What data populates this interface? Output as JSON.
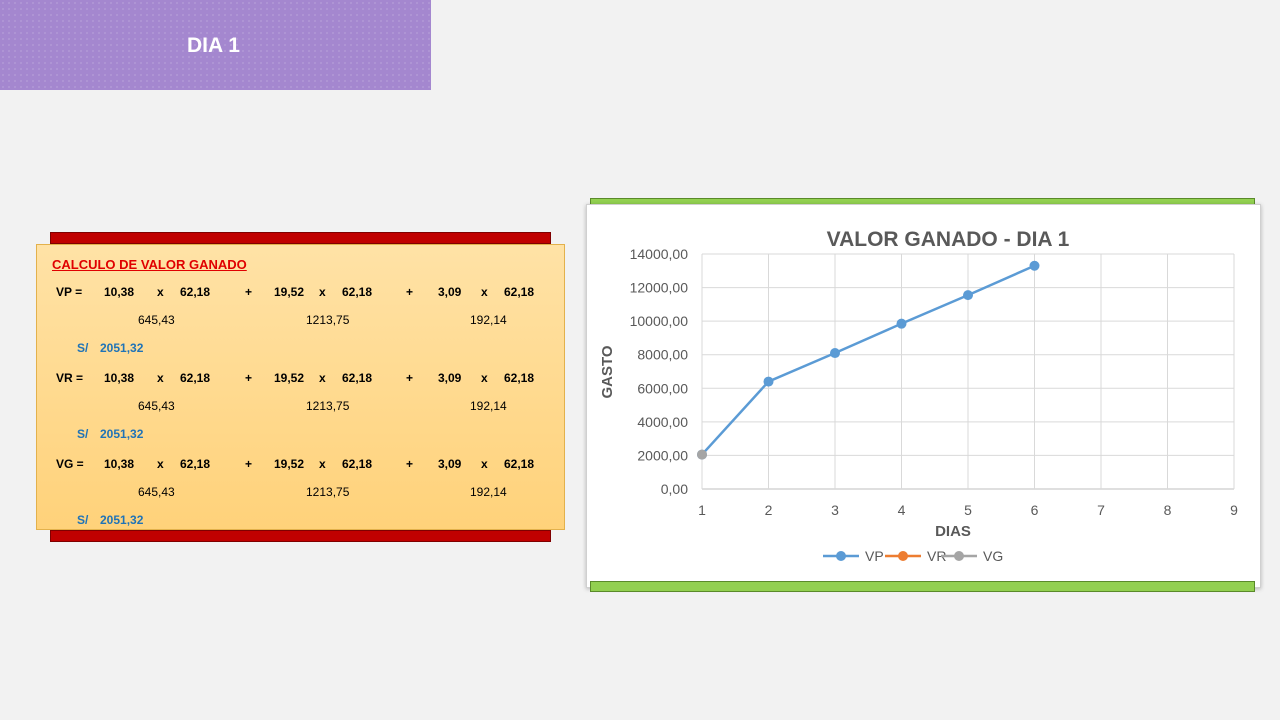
{
  "header": {
    "title": "DIA 1"
  },
  "calc": {
    "title": "CALCULO DE VALOR GANADO",
    "rows": [
      {
        "label": "VP =",
        "a": "10,38",
        "x1": "x",
        "b": "62,18",
        "plus1": "+",
        "c": "19,52",
        "x2": "x",
        "d": "62,18",
        "plus2": "+",
        "e": "3,09",
        "x3": "x",
        "f": "62,18",
        "r1": "645,43",
        "r2": "1213,75",
        "r3": "192,14",
        "cur": "S/",
        "total": "2051,32"
      },
      {
        "label": "VR =",
        "a": "10,38",
        "x1": "x",
        "b": "62,18",
        "plus1": "+",
        "c": "19,52",
        "x2": "x",
        "d": "62,18",
        "plus2": "+",
        "e": "3,09",
        "x3": "x",
        "f": "62,18",
        "r1": "645,43",
        "r2": "1213,75",
        "r3": "192,14",
        "cur": "S/",
        "total": "2051,32"
      },
      {
        "label": "VG =",
        "a": "10,38",
        "x1": "x",
        "b": "62,18",
        "plus1": "+",
        "c": "19,52",
        "x2": "x",
        "d": "62,18",
        "plus2": "+",
        "e": "3,09",
        "x3": "x",
        "f": "62,18",
        "r1": "645,43",
        "r2": "1213,75",
        "r3": "192,14",
        "cur": "S/",
        "total": "2051,32"
      }
    ]
  },
  "colors": {
    "header_bg": "#a487cf",
    "red_bar": "#c00000",
    "green_bar": "#92d050",
    "calc_title": "#e00000",
    "total_blue": "#1f73b7"
  },
  "chart_data": {
    "type": "line",
    "title": "VALOR GANADO - DIA 1",
    "xlabel": "DIAS",
    "ylabel": "GASTO",
    "xlim": [
      1,
      9
    ],
    "ylim": [
      0,
      14000
    ],
    "xticks": [
      "1",
      "2",
      "3",
      "4",
      "5",
      "6",
      "7",
      "8",
      "9"
    ],
    "yticks": [
      "0,00",
      "2000,00",
      "4000,00",
      "6000,00",
      "8000,00",
      "10000,00",
      "12000,00",
      "14000,00"
    ],
    "grid": true,
    "legend_position": "bottom",
    "series": [
      {
        "name": "VP",
        "color": "#5b9bd5",
        "x": [
          1,
          2,
          3,
          4,
          5,
          6
        ],
        "y": [
          2051.32,
          6400,
          8100,
          9850,
          11550,
          13300
        ]
      },
      {
        "name": "VR",
        "color": "#ed7d31",
        "x": [],
        "y": []
      },
      {
        "name": "VG",
        "color": "#a5a5a5",
        "x": [
          1
        ],
        "y": [
          2051.32
        ]
      }
    ]
  }
}
